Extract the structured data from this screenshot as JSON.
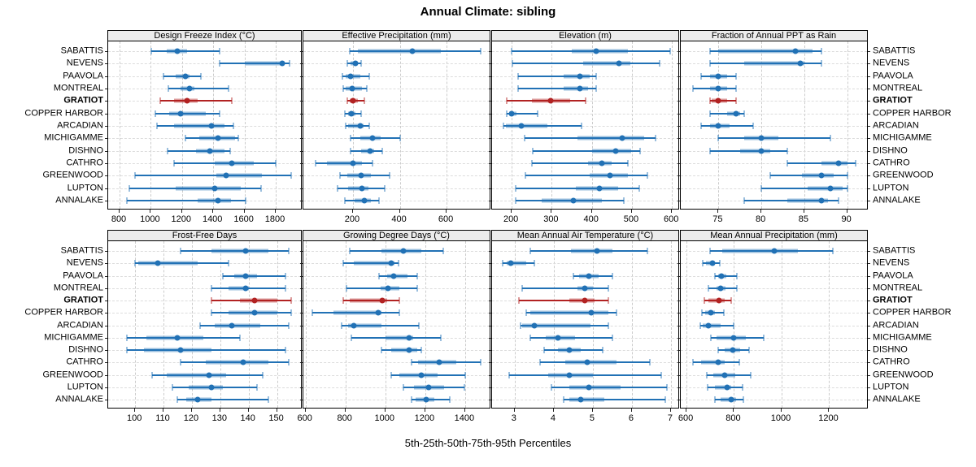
{
  "title": "Annual Climate: sibling",
  "xlabel": "5th-25th-50th-75th-95th Percentiles",
  "sites": [
    "SABATTIS",
    "NEVENS",
    "PAAVOLA",
    "MONTREAL",
    "GRATIOT",
    "COPPER HARBOR",
    "ARCADIAN",
    "MICHIGAMME",
    "DISHNO",
    "CATHRO",
    "GREENWOOD",
    "LUPTON",
    "ANNALAKE"
  ],
  "highlight_site": "GRATIOT",
  "percentile_labels": [
    "5th",
    "25th",
    "50th",
    "75th",
    "95th"
  ],
  "colors": {
    "series": "#2171b5",
    "series_band": "rgba(33,113,181,0.45)",
    "highlight": "#b22222",
    "highlight_band": "rgba(178,34,34,0.45)",
    "strip_bg": "#ececec",
    "grid": "#cccccc"
  },
  "chart_data": {
    "type": "scatter",
    "variant": "multi-panel percentile dotplot (5th-25th-50th-75th-95th)",
    "legend_position": "none",
    "grid": true,
    "panels": [
      {
        "title": "Design Freeze Index (°C)",
        "ticks": [
          800,
          1000,
          1200,
          1400,
          1600,
          1800
        ],
        "xlim": [
          727,
          1972
        ],
        "values": [
          [
            1005,
            1100,
            1170,
            1230,
            1440
          ],
          [
            1440,
            1600,
            1840,
            1860,
            1890
          ],
          [
            1080,
            1160,
            1220,
            1250,
            1320
          ],
          [
            1110,
            1190,
            1250,
            1280,
            1500
          ],
          [
            1060,
            1150,
            1230,
            1300,
            1520
          ],
          [
            1030,
            1120,
            1190,
            1350,
            1440
          ],
          [
            1040,
            1150,
            1390,
            1470,
            1530
          ],
          [
            1220,
            1310,
            1430,
            1540,
            1560
          ],
          [
            1105,
            1290,
            1380,
            1470,
            1510
          ],
          [
            1150,
            1410,
            1520,
            1660,
            1800
          ],
          [
            900,
            1420,
            1480,
            1710,
            1900
          ],
          [
            865,
            1160,
            1410,
            1575,
            1705
          ],
          [
            845,
            1300,
            1430,
            1515,
            1605
          ]
        ]
      },
      {
        "title": "Effective Precipitation (mm)",
        "ticks": [
          200,
          400,
          600
        ],
        "xlim": [
          -12,
          791
        ],
        "values": [
          [
            185,
            220,
            455,
            575,
            745
          ],
          [
            175,
            190,
            210,
            220,
            235
          ],
          [
            155,
            170,
            190,
            230,
            270
          ],
          [
            158,
            170,
            195,
            240,
            260
          ],
          [
            175,
            185,
            200,
            220,
            250
          ],
          [
            165,
            180,
            193,
            210,
            235
          ],
          [
            170,
            180,
            230,
            245,
            270
          ],
          [
            190,
            230,
            285,
            320,
            400
          ],
          [
            190,
            235,
            272,
            292,
            325
          ],
          [
            40,
            90,
            200,
            240,
            285
          ],
          [
            145,
            177,
            235,
            275,
            355
          ],
          [
            135,
            180,
            237,
            265,
            335
          ],
          [
            165,
            208,
            247,
            278,
            313
          ]
        ]
      },
      {
        "title": "Elevation (m)",
        "ticks": [
          200,
          300,
          400,
          500,
          600
        ],
        "xlim": [
          151,
          620
        ],
        "values": [
          [
            200,
            350,
            410,
            490,
            595
          ],
          [
            202,
            378,
            468,
            497,
            570
          ],
          [
            215,
            330,
            370,
            395,
            410
          ],
          [
            215,
            330,
            370,
            390,
            410
          ],
          [
            188,
            250,
            298,
            345,
            385
          ],
          [
            187,
            193,
            200,
            212,
            265
          ],
          [
            180,
            185,
            225,
            290,
            375
          ],
          [
            232,
            364,
            476,
            530,
            560
          ],
          [
            253,
            400,
            460,
            498,
            520
          ],
          [
            250,
            390,
            425,
            450,
            490
          ],
          [
            235,
            395,
            445,
            490,
            538
          ],
          [
            210,
            360,
            420,
            465,
            518
          ],
          [
            210,
            275,
            355,
            425,
            480
          ]
        ]
      },
      {
        "title": "Fraction of Annual PPT as Rain",
        "ticks": [
          75,
          80,
          85,
          90
        ],
        "xlim": [
          70.6,
          92.5
        ],
        "values": [
          [
            74,
            75,
            84,
            86,
            87
          ],
          [
            74,
            78,
            84.5,
            85,
            87
          ],
          [
            73,
            74,
            75,
            76,
            77
          ],
          [
            72,
            74,
            75,
            76,
            77
          ],
          [
            74,
            74.2,
            75,
            76,
            77
          ],
          [
            74,
            76,
            77,
            77.5,
            78
          ],
          [
            73,
            74,
            75,
            76.3,
            79
          ],
          [
            75,
            78,
            80,
            82,
            88
          ],
          [
            74,
            77.5,
            80,
            81,
            83
          ],
          [
            83,
            87,
            89,
            90,
            91
          ],
          [
            81,
            84.7,
            87,
            88.4,
            90
          ],
          [
            80,
            85.4,
            88,
            89.5,
            90
          ],
          [
            78,
            83,
            87,
            87.8,
            89
          ]
        ]
      },
      {
        "title": "Frost-Free Days",
        "ticks": [
          100,
          110,
          120,
          130,
          140,
          150
        ],
        "xlim": [
          90.5,
          159
        ],
        "values": [
          [
            116,
            127,
            139,
            147,
            154
          ],
          [
            100,
            101,
            108,
            122,
            133
          ],
          [
            131,
            135,
            139,
            143,
            153
          ],
          [
            127,
            133,
            139,
            140,
            153
          ],
          [
            127,
            137,
            142,
            150,
            155
          ],
          [
            127,
            133,
            142,
            150,
            155
          ],
          [
            123,
            128,
            134,
            144,
            154
          ],
          [
            97,
            104,
            115,
            124,
            137
          ],
          [
            97,
            103,
            116,
            127,
            153
          ],
          [
            116,
            125,
            138,
            147,
            154
          ],
          [
            106,
            111,
            126,
            132,
            145
          ],
          [
            113,
            119,
            127,
            131,
            143
          ],
          [
            115,
            118,
            122,
            127,
            147
          ]
        ]
      },
      {
        "title": "Growing Degree Days (°C)",
        "ticks": [
          600,
          800,
          1000,
          1200,
          1400
        ],
        "xlim": [
          589,
          1531
        ],
        "values": [
          [
            820,
            980,
            1090,
            1180,
            1290
          ],
          [
            790,
            840,
            1030,
            1045,
            1065
          ],
          [
            970,
            1010,
            1040,
            1110,
            1160
          ],
          [
            805,
            975,
            1015,
            1070,
            1160
          ],
          [
            790,
            823,
            985,
            1010,
            1070
          ],
          [
            635,
            740,
            965,
            980,
            1070
          ],
          [
            780,
            812,
            840,
            980,
            1170
          ],
          [
            830,
            1000,
            1120,
            1140,
            1280
          ],
          [
            980,
            1030,
            1120,
            1160,
            1180
          ],
          [
            1130,
            1165,
            1270,
            1355,
            1480
          ],
          [
            1030,
            1070,
            1180,
            1260,
            1400
          ],
          [
            1090,
            1145,
            1215,
            1295,
            1395
          ],
          [
            1130,
            1150,
            1205,
            1245,
            1325
          ]
        ]
      },
      {
        "title": "Mean Annual Air Temperature (°C)",
        "ticks": [
          3,
          4,
          5,
          6,
          7
        ],
        "xlim": [
          2.42,
          7.23
        ],
        "values": [
          [
            3.4,
            4.45,
            5.1,
            5.5,
            6.4
          ],
          [
            2.7,
            2.8,
            2.9,
            3.3,
            3.5
          ],
          [
            4.5,
            4.65,
            4.9,
            5.15,
            5.5
          ],
          [
            3.2,
            4.6,
            4.8,
            5.0,
            5.4
          ],
          [
            3.1,
            4.4,
            4.8,
            5.05,
            5.4
          ],
          [
            3.3,
            3.4,
            4.95,
            5.4,
            5.6
          ],
          [
            3.15,
            3.2,
            3.5,
            4.95,
            5.4
          ],
          [
            3.4,
            3.8,
            4.1,
            4.55,
            5.5
          ],
          [
            3.75,
            4.1,
            4.4,
            4.7,
            5.25
          ],
          [
            3.65,
            4.3,
            4.85,
            5.6,
            6.45
          ],
          [
            2.85,
            3.85,
            4.4,
            5.0,
            6.75
          ],
          [
            3.95,
            4.4,
            4.9,
            5.7,
            6.9
          ],
          [
            4.25,
            4.4,
            4.7,
            5.3,
            6.85
          ]
        ]
      },
      {
        "title": "Mean Annual Precipitation (mm)",
        "ticks": [
          600,
          800,
          1000,
          1200
        ],
        "xlim": [
          576,
          1366
        ],
        "values": [
          [
            700,
            750,
            970,
            1070,
            1215
          ],
          [
            668,
            683,
            708,
            721,
            740
          ],
          [
            718,
            733,
            747,
            768,
            813
          ],
          [
            692,
            725,
            745,
            764,
            811
          ],
          [
            676,
            692,
            737,
            762,
            788
          ],
          [
            666,
            677,
            701,
            718,
            756
          ],
          [
            658,
            670,
            692,
            744,
            800
          ],
          [
            701,
            725,
            800,
            848,
            926
          ],
          [
            733,
            762,
            794,
            826,
            862
          ],
          [
            628,
            663,
            733,
            759,
            823
          ],
          [
            685,
            714,
            759,
            804,
            869
          ],
          [
            689,
            718,
            771,
            788,
            835
          ],
          [
            718,
            742,
            788,
            807,
            838
          ]
        ]
      }
    ]
  }
}
